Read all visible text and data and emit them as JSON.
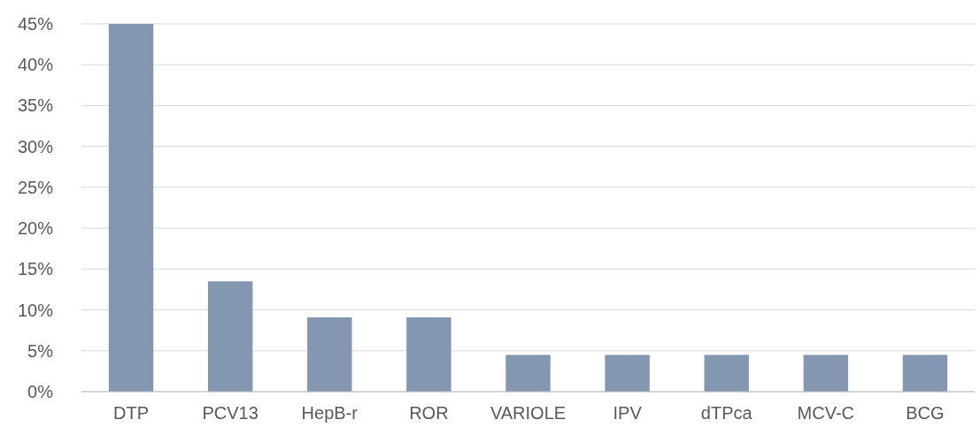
{
  "chart_data": {
    "type": "bar",
    "categories": [
      "DTP",
      "PCV13",
      "HepB-r",
      "ROR",
      "VARIOLE",
      "IPV",
      "dTPca",
      "MCV-C",
      "BCG"
    ],
    "values": [
      45,
      13.5,
      9.1,
      9.1,
      4.5,
      4.5,
      4.5,
      4.5,
      4.5
    ],
    "color": "#8497b0",
    "ylim": [
      0,
      45
    ],
    "yticks": [
      {
        "value": 0,
        "label": "0%"
      },
      {
        "value": 5,
        "label": "5%"
      },
      {
        "value": 10,
        "label": "10%"
      },
      {
        "value": 15,
        "label": "15%"
      },
      {
        "value": 20,
        "label": "20%"
      },
      {
        "value": 25,
        "label": "25%"
      },
      {
        "value": 30,
        "label": "30%"
      },
      {
        "value": 35,
        "label": "35%"
      },
      {
        "value": 40,
        "label": "40%"
      },
      {
        "value": 45,
        "label": "45%"
      }
    ],
    "grid": "y"
  }
}
